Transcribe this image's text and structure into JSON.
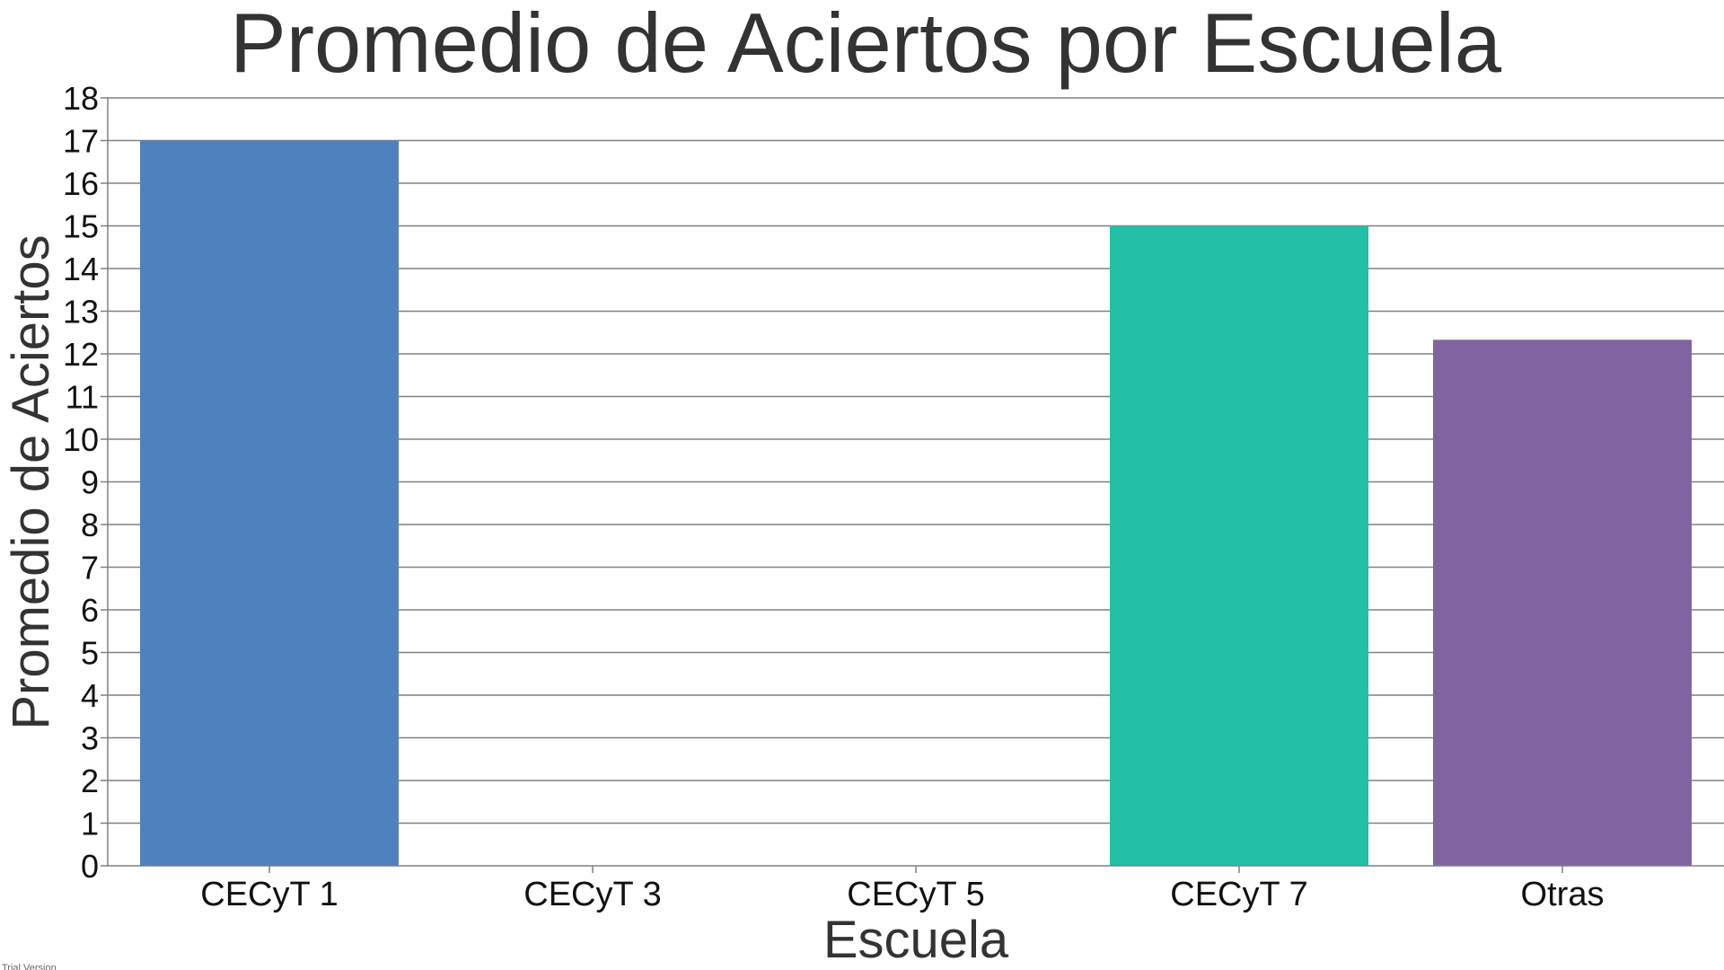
{
  "chart_data": {
    "type": "bar",
    "title": "Promedio de Aciertos por Escuela",
    "xlabel": "Escuela",
    "ylabel": "Promedio de Aciertos",
    "categories": [
      "CECyT 1",
      "CECyT 3",
      "CECyT 5",
      "CECyT 7",
      "Otras"
    ],
    "values": [
      17,
      0,
      0,
      15,
      12.33
    ],
    "colors": [
      "#4f81bd",
      "#4f81bd",
      "#4f81bd",
      "#23bfa7",
      "#8064a2"
    ],
    "ylim": [
      0,
      18
    ],
    "yticks": [
      0,
      1,
      2,
      3,
      4,
      5,
      6,
      7,
      8,
      9,
      10,
      11,
      12,
      13,
      14,
      15,
      16,
      17,
      18
    ],
    "grid": true,
    "legend": "none"
  },
  "watermark": "Trial Version"
}
